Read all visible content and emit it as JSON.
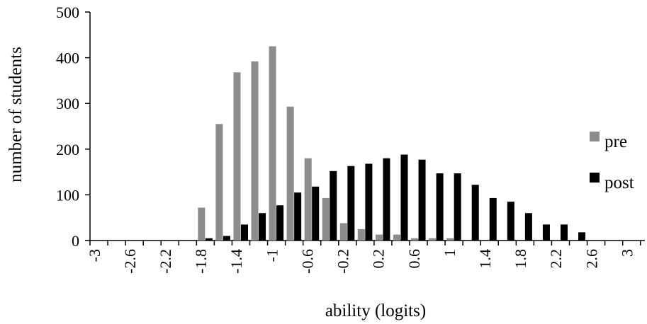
{
  "chart_data": {
    "type": "bar",
    "xlabel": "ability (logits)",
    "ylabel": "number of students",
    "ylim": [
      0,
      500
    ],
    "y_ticks": [
      0,
      100,
      200,
      300,
      400,
      500
    ],
    "x_tick_labels": [
      "-3",
      "-2.6",
      "-2.2",
      "-1.8",
      "-1.4",
      "-1",
      "-0.6",
      "-0.2",
      "0.2",
      "0.6",
      "1",
      "1.4",
      "1.8",
      "2.2",
      "2.6",
      "3"
    ],
    "categories": [
      "-3",
      "-2.8",
      "-2.6",
      "-2.4",
      "-2.2",
      "-2",
      "-1.8",
      "-1.6",
      "-1.4",
      "-1.2",
      "-1",
      "-0.8",
      "-0.6",
      "-0.4",
      "-0.2",
      "0",
      "0.2",
      "0.4",
      "0.6",
      "0.8",
      "1",
      "1.2",
      "1.4",
      "1.6",
      "1.8",
      "2",
      "2.2",
      "2.4",
      "2.6",
      "2.8",
      "3"
    ],
    "series": [
      {
        "name": "pre",
        "color": "#8c8c8c",
        "values": [
          0,
          0,
          0,
          0,
          0,
          0,
          72,
          255,
          368,
          392,
          425,
          293,
          180,
          93,
          38,
          25,
          13,
          13,
          5,
          5,
          5,
          0,
          0,
          0,
          0,
          0,
          0,
          0,
          0,
          0,
          0
        ]
      },
      {
        "name": "post",
        "color": "#000000",
        "values": [
          0,
          0,
          0,
          0,
          0,
          0,
          5,
          10,
          35,
          60,
          77,
          105,
          118,
          152,
          163,
          168,
          180,
          188,
          177,
          147,
          147,
          122,
          93,
          85,
          60,
          35,
          35,
          18,
          0,
          0,
          0
        ]
      }
    ],
    "legend_position": "right",
    "grid": false
  }
}
